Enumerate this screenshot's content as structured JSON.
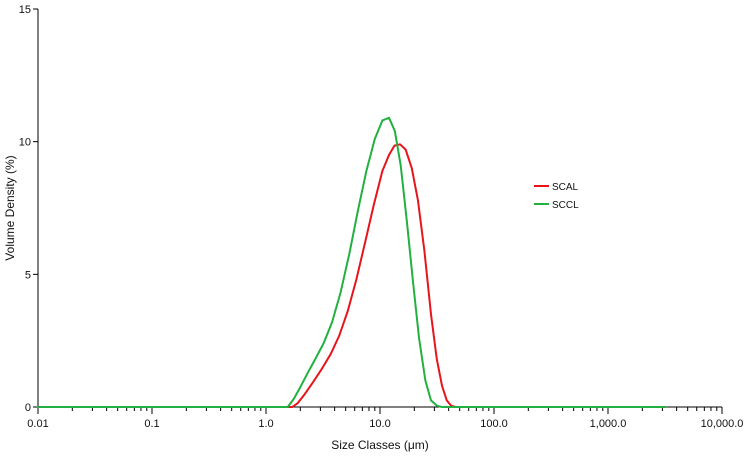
{
  "chart_data": {
    "type": "line",
    "title": "",
    "xlabel": "Size Classes (μm)",
    "ylabel": "Volume Density (%)",
    "x_scale": "log",
    "xlim": [
      0.01,
      10000
    ],
    "ylim": [
      0,
      15
    ],
    "x_ticks": [
      0.01,
      0.1,
      1,
      10,
      100,
      1000,
      10000
    ],
    "x_tick_labels": [
      "0.01",
      "0.1",
      "1.0",
      "10.0",
      "100.0",
      "1,000.0",
      "10,000.0"
    ],
    "y_ticks": [
      0,
      5,
      10,
      15
    ],
    "y_tick_labels": [
      "0",
      "5",
      "10",
      "15"
    ],
    "grid": false,
    "legend_position": "right",
    "series": [
      {
        "name": "SCAL",
        "color": "#e8141c",
        "x": [
          0.01,
          1.7,
          1.9,
          2.2,
          2.6,
          3.1,
          3.7,
          4.4,
          5.2,
          6.2,
          7.4,
          8.8,
          10.5,
          12.0,
          13.4,
          15.0,
          16.8,
          19.0,
          21.5,
          24.5,
          28.0,
          31.5,
          35.0,
          38.5,
          42.0,
          46.0,
          100,
          3200
        ],
        "y": [
          0,
          0,
          0.15,
          0.5,
          0.95,
          1.45,
          2.0,
          2.7,
          3.6,
          4.8,
          6.2,
          7.6,
          8.9,
          9.5,
          9.85,
          9.9,
          9.7,
          9.0,
          7.8,
          5.9,
          3.5,
          1.8,
          0.8,
          0.25,
          0.05,
          0,
          0,
          0
        ]
      },
      {
        "name": "SCCL",
        "color": "#22b040",
        "x": [
          0.01,
          1.55,
          1.75,
          2.0,
          2.3,
          2.7,
          3.2,
          3.8,
          4.5,
          5.4,
          6.4,
          7.6,
          9.0,
          10.5,
          12.0,
          13.5,
          15.2,
          17.2,
          19.5,
          22.0,
          25.0,
          28.0,
          31.5,
          35.0,
          100,
          3200
        ],
        "y": [
          0,
          0,
          0.3,
          0.75,
          1.25,
          1.8,
          2.4,
          3.2,
          4.3,
          5.8,
          7.4,
          8.9,
          10.1,
          10.8,
          10.9,
          10.4,
          9.1,
          7.0,
          4.7,
          2.6,
          1.0,
          0.25,
          0.05,
          0,
          0,
          0
        ]
      }
    ]
  }
}
